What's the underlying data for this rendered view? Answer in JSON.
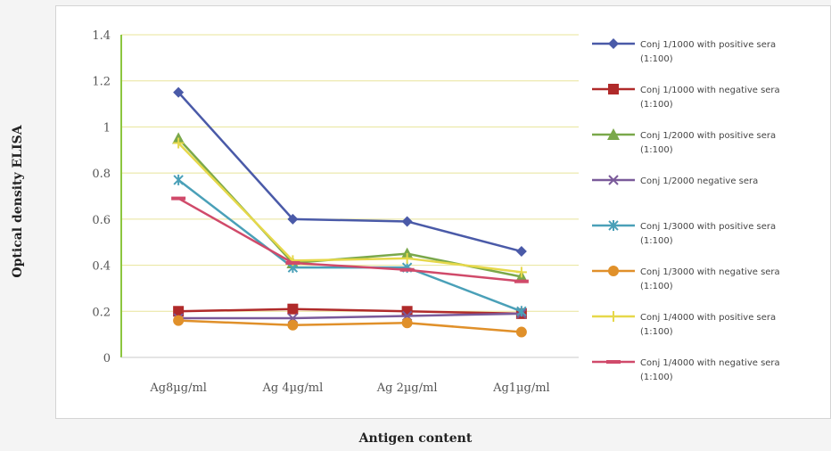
{
  "chart_data": {
    "type": "line",
    "title": "",
    "xlabel": "Antigen content",
    "ylabel": "Optical density ELISA",
    "categories": [
      "Ag8µg/ml",
      "Ag 4µg/ml",
      "Ag 2µg/ml",
      "Ag1µg/ml"
    ],
    "ylim": [
      0,
      1.4
    ],
    "yticks": [
      0,
      0.2,
      0.4,
      0.6,
      0.8,
      1,
      1.2,
      1.4
    ],
    "grid": "horizontal",
    "legend": "right",
    "series": [
      {
        "name": [
          "Conj 1/1000 with positive sera",
          "(1:100)"
        ],
        "values": [
          1.15,
          0.6,
          0.59,
          0.46
        ],
        "color": "#4a5aa8",
        "marker": "diamond"
      },
      {
        "name": [
          "Conj 1/1000 with negative sera",
          "(1:100)"
        ],
        "values": [
          0.2,
          0.21,
          0.2,
          0.19
        ],
        "color": "#b02a2a",
        "marker": "square"
      },
      {
        "name": [
          "Conj 1/2000 with positive sera",
          "(1:100)"
        ],
        "values": [
          0.95,
          0.41,
          0.45,
          0.35
        ],
        "color": "#7aa84a",
        "marker": "triangle"
      },
      {
        "name": [
          "Conj 1/2000 negative sera"
        ],
        "values": [
          0.17,
          0.17,
          0.18,
          0.19
        ],
        "color": "#7a5a9a",
        "marker": "x"
      },
      {
        "name": [
          "Conj 1/3000 with positive sera",
          "(1:100)"
        ],
        "values": [
          0.77,
          0.39,
          0.39,
          0.2
        ],
        "color": "#4aa0b8",
        "marker": "star"
      },
      {
        "name": [
          "Conj 1/3000 with negative sera",
          "(1:100)"
        ],
        "values": [
          0.16,
          0.14,
          0.15,
          0.11
        ],
        "color": "#e0902a",
        "marker": "circle"
      },
      {
        "name": [
          "Conj 1/4000 with positive sera",
          "(1:100)"
        ],
        "values": [
          0.93,
          0.42,
          0.43,
          0.37
        ],
        "color": "#e6d84a",
        "marker": "plus"
      },
      {
        "name": [
          "Conj 1/4000 with negative sera",
          "(1:100)"
        ],
        "values": [
          0.69,
          0.41,
          0.38,
          0.33
        ],
        "color": "#d04a6a",
        "marker": "dash"
      }
    ]
  }
}
